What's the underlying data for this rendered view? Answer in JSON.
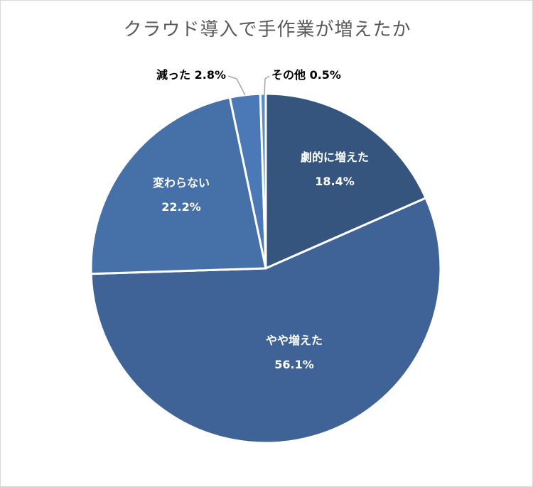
{
  "chart_data": {
    "type": "pie",
    "title": "クラウド導入で手作業が増えたか",
    "slices": [
      {
        "label": "劇的に増えた",
        "value": 18.4,
        "display": "18.4%",
        "color": "#35557f",
        "label_pos": "inside"
      },
      {
        "label": "やや増えた",
        "value": 56.1,
        "display": "56.1%",
        "color": "#3f6396",
        "label_pos": "inside"
      },
      {
        "label": "変わらない",
        "value": 22.2,
        "display": "22.2%",
        "color": "#4670a8",
        "label_pos": "inside"
      },
      {
        "label": "減った",
        "value": 2.8,
        "display": "2.8%",
        "color": "#4b79b8",
        "label_pos": "outside"
      },
      {
        "label": "その他",
        "value": 0.5,
        "display": "0.5%",
        "color": "#5b8bc9",
        "label_pos": "outside"
      }
    ],
    "start_angle": "top",
    "direction": "clockwise",
    "legend": "none",
    "label_color_inside": "#ffffff",
    "label_color_outside": "#000000",
    "leader_line_color": "#a6a6a6"
  }
}
